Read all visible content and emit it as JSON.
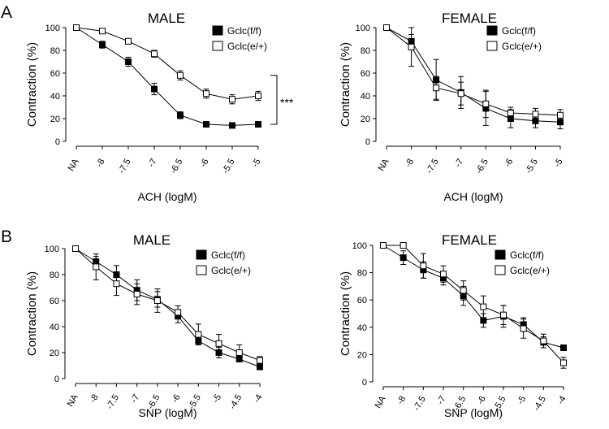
{
  "panel_labels": [
    "A",
    "B"
  ],
  "chart_data": [
    {
      "type": "line",
      "id": "a-male",
      "title": "MALE",
      "xlabel": "ACH (logM)",
      "ylabel": "Contraction (%)",
      "categories": [
        "NA",
        "-8",
        "-7.5",
        "-7",
        "-6.5",
        "-6",
        "-5.5",
        "-5"
      ],
      "ylim": [
        0,
        100
      ],
      "yticks": [
        "0",
        "20",
        "40",
        "60",
        "80",
        "100"
      ],
      "legend_position": "top-right",
      "annotation": "***",
      "series": [
        {
          "name": "Gclc(f/f)",
          "marker": "filled-square",
          "values": [
            100,
            85,
            70,
            46,
            23,
            15,
            14,
            15
          ],
          "errors": [
            0,
            3,
            4,
            5,
            3,
            1,
            1,
            1
          ]
        },
        {
          "name": "Gclc(e/+)",
          "marker": "open-square",
          "values": [
            100,
            97,
            88,
            77,
            58,
            42,
            37,
            40
          ],
          "errors": [
            0,
            1,
            2,
            3,
            4,
            4,
            4,
            4
          ]
        }
      ]
    },
    {
      "type": "line",
      "id": "a-female",
      "title": "FEMALE",
      "xlabel": "ACH (logM)",
      "ylabel": "Contraction (%)",
      "categories": [
        "NA",
        "-8",
        "-7.5",
        "-7",
        "-6.5",
        "-6",
        "-5.5",
        "-5"
      ],
      "ylim": [
        0,
        100
      ],
      "yticks": [
        "0",
        "20",
        "40",
        "60",
        "80",
        "100"
      ],
      "legend_position": "top-right",
      "series": [
        {
          "name": "Gclc(f/f)",
          "marker": "filled-square",
          "values": [
            100,
            88,
            54,
            43,
            29,
            20,
            18,
            17
          ],
          "errors": [
            0,
            6,
            18,
            14,
            15,
            8,
            6,
            6
          ]
        },
        {
          "name": "Gclc(e/+)",
          "marker": "open-square",
          "values": [
            100,
            83,
            47,
            42,
            33,
            25,
            24,
            23
          ],
          "errors": [
            0,
            17,
            10,
            10,
            12,
            5,
            5,
            5
          ]
        }
      ]
    },
    {
      "type": "line",
      "id": "b-male",
      "title": "MALE",
      "xlabel": "SNP (logM)",
      "ylabel": "Contraction (%)",
      "categories": [
        "NA",
        "-8",
        "-7.5",
        "-7",
        "-6.5",
        "-6",
        "-5.5",
        "-5",
        "-4.5",
        "-4"
      ],
      "ylim": [
        0,
        100
      ],
      "yticks": [
        "0",
        "20",
        "40",
        "60",
        "80",
        "100"
      ],
      "legend_position": "top-right",
      "series": [
        {
          "name": "Gclc(f/f)",
          "marker": "filled-square",
          "values": [
            100,
            90,
            80,
            68,
            61,
            48,
            29,
            20,
            15,
            9
          ],
          "errors": [
            0,
            4,
            7,
            8,
            6,
            5,
            3,
            4,
            2,
            2
          ]
        },
        {
          "name": "Gclc(e/+)",
          "marker": "open-square",
          "values": [
            100,
            86,
            73,
            65,
            60,
            51,
            34,
            27,
            20,
            14
          ],
          "errors": [
            0,
            10,
            9,
            8,
            9,
            5,
            8,
            7,
            6,
            3
          ]
        }
      ]
    },
    {
      "type": "line",
      "id": "b-female",
      "title": "FEMALE",
      "xlabel": "SNP (logM)",
      "ylabel": "Contraction (%)",
      "categories": [
        "NA",
        "-8",
        "-7.5",
        "-7",
        "-6.5",
        "-6",
        "-5.5",
        "-5",
        "-4.5",
        "-4"
      ],
      "ylim": [
        0,
        100
      ],
      "yticks": [
        "0",
        "20",
        "40",
        "60",
        "80",
        "100"
      ],
      "legend_position": "top-right",
      "series": [
        {
          "name": "Gclc(f/f)",
          "marker": "filled-square",
          "values": [
            100,
            91,
            82,
            76,
            63,
            45,
            48,
            42,
            29,
            25
          ],
          "errors": [
            0,
            5,
            6,
            5,
            7,
            5,
            8,
            5,
            4,
            2
          ]
        },
        {
          "name": "Gclc(e/+)",
          "marker": "open-square",
          "values": [
            100,
            100,
            85,
            79,
            67,
            55,
            49,
            39,
            30,
            14
          ],
          "errors": [
            0,
            2,
            9,
            6,
            7,
            8,
            7,
            7,
            5,
            4
          ]
        }
      ]
    }
  ]
}
